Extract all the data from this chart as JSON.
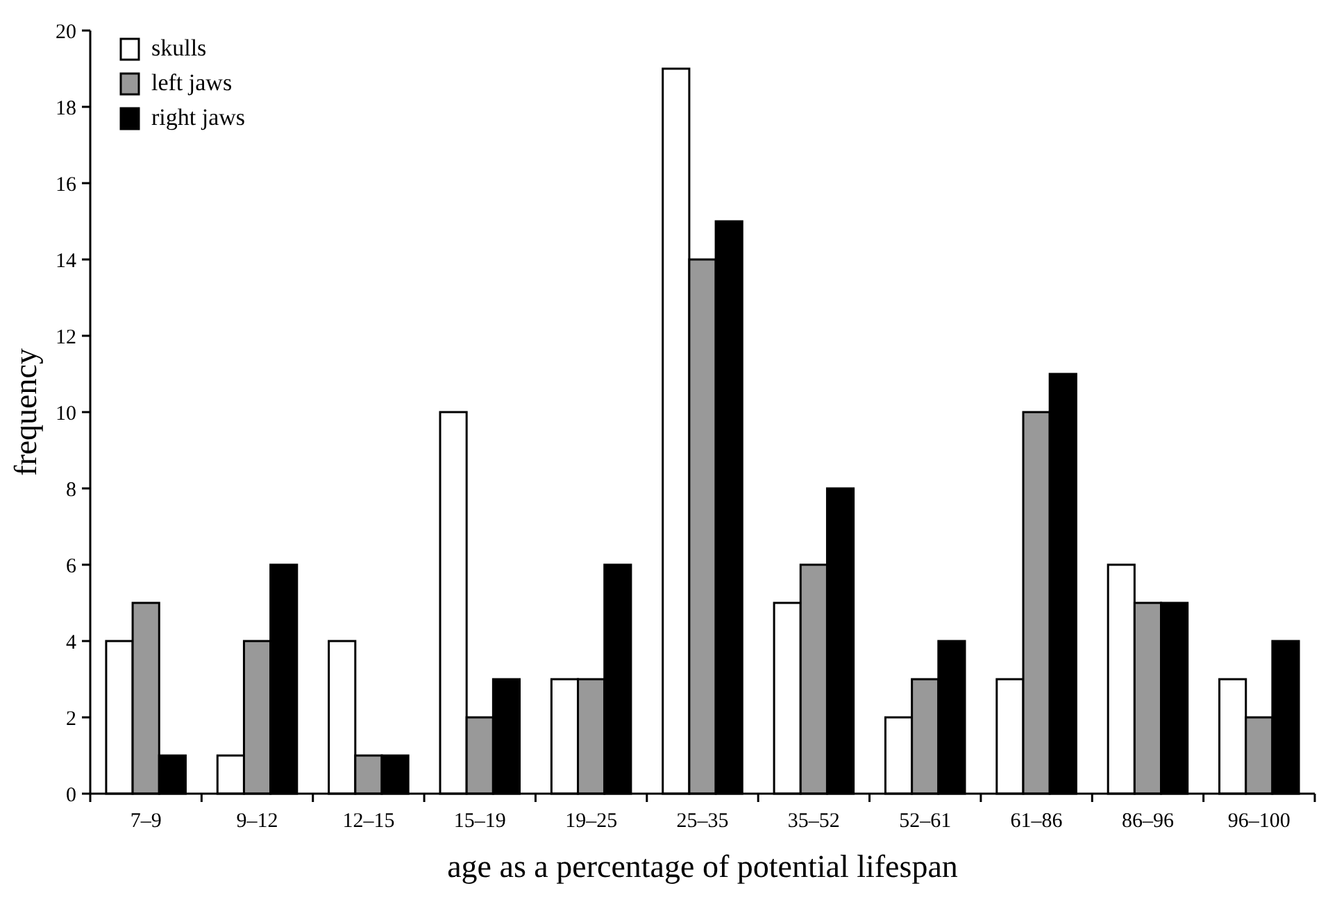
{
  "chart_data": {
    "type": "bar",
    "xlabel": "age as a percentage of potential lifespan",
    "ylabel": "frequency",
    "categories": [
      "7–9",
      "9–12",
      "12–15",
      "15–19",
      "19–25",
      "25–35",
      "35–52",
      "52–61",
      "61–86",
      "86–96",
      "96–100"
    ],
    "series": [
      {
        "name": "skulls",
        "color": "#ffffff",
        "values": [
          4,
          1,
          4,
          10,
          3,
          19,
          5,
          2,
          3,
          6,
          3
        ]
      },
      {
        "name": "left jaws",
        "color": "#999999",
        "values": [
          5,
          4,
          1,
          2,
          3,
          14,
          6,
          3,
          10,
          5,
          2
        ]
      },
      {
        "name": "right jaws",
        "color": "#000000",
        "values": [
          1,
          6,
          1,
          3,
          6,
          15,
          8,
          4,
          11,
          5,
          4
        ]
      }
    ],
    "ylim": [
      0,
      20
    ],
    "yticks": [
      0,
      2,
      4,
      6,
      8,
      10,
      12,
      14,
      16,
      18,
      20
    ],
    "grid": false,
    "legend": "top left"
  }
}
